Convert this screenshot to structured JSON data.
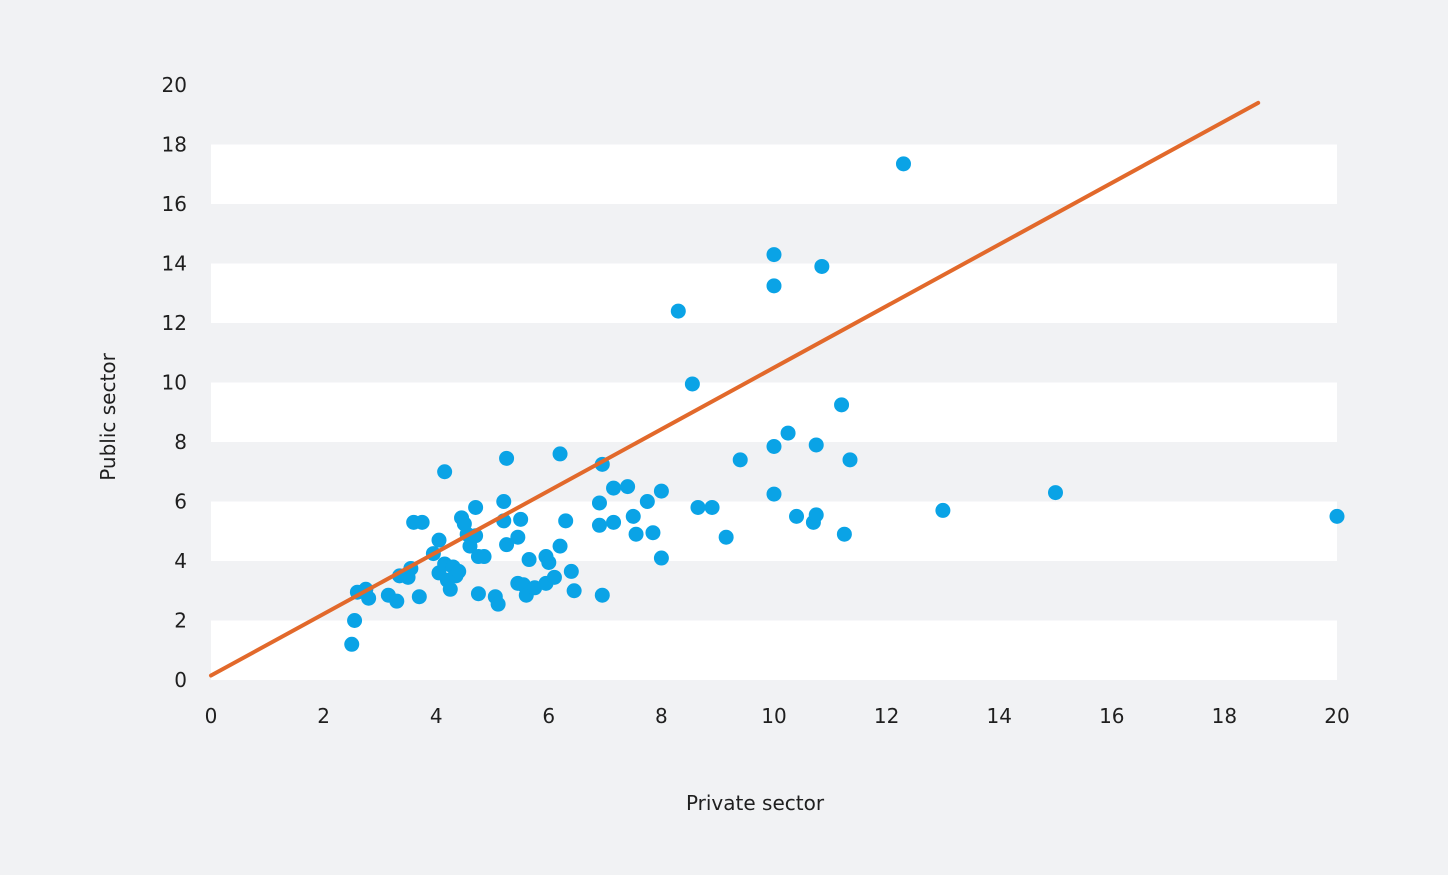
{
  "chart_data": {
    "type": "scatter",
    "title": "",
    "xlabel": "Private sector",
    "ylabel": "Public sector",
    "xlim": [
      0,
      20
    ],
    "ylim": [
      0,
      20
    ],
    "xticks": [
      0,
      2,
      4,
      6,
      8,
      10,
      12,
      14,
      16,
      18,
      20
    ],
    "yticks": [
      0,
      2,
      4,
      6,
      8,
      10,
      12,
      14,
      16,
      18,
      20
    ],
    "grid": "alternating horizontal bands",
    "legend": "none",
    "colors": {
      "background": "#f1f2f4",
      "band": "#ffffff",
      "points": "#0aa3e6",
      "line": "#e2692b",
      "text": "#1f1f1f"
    },
    "trend_line": {
      "x": [
        0,
        18.6
      ],
      "y": [
        0.15,
        19.4
      ]
    },
    "series": [
      {
        "points": [
          [
            2.5,
            1.2
          ],
          [
            2.55,
            2.0
          ],
          [
            2.6,
            2.95
          ],
          [
            2.75,
            3.05
          ],
          [
            2.8,
            2.75
          ],
          [
            3.15,
            2.85
          ],
          [
            3.3,
            2.65
          ],
          [
            3.35,
            3.5
          ],
          [
            3.5,
            3.45
          ],
          [
            3.55,
            3.75
          ],
          [
            3.6,
            5.3
          ],
          [
            3.75,
            5.3
          ],
          [
            3.7,
            2.8
          ],
          [
            3.95,
            4.25
          ],
          [
            4.05,
            4.7
          ],
          [
            4.05,
            3.6
          ],
          [
            4.15,
            3.9
          ],
          [
            4.2,
            3.35
          ],
          [
            4.25,
            3.05
          ],
          [
            4.3,
            3.8
          ],
          [
            4.35,
            3.5
          ],
          [
            4.4,
            3.65
          ],
          [
            4.15,
            7.0
          ],
          [
            4.45,
            5.45
          ],
          [
            4.5,
            5.25
          ],
          [
            4.55,
            4.9
          ],
          [
            4.6,
            4.5
          ],
          [
            4.7,
            4.85
          ],
          [
            4.7,
            5.8
          ],
          [
            4.75,
            4.15
          ],
          [
            4.75,
            2.9
          ],
          [
            4.85,
            4.15
          ],
          [
            5.05,
            2.8
          ],
          [
            5.1,
            2.55
          ],
          [
            5.2,
            5.35
          ],
          [
            5.2,
            6.0
          ],
          [
            5.25,
            4.55
          ],
          [
            5.25,
            7.45
          ],
          [
            5.45,
            4.8
          ],
          [
            5.45,
            3.25
          ],
          [
            5.5,
            5.4
          ],
          [
            5.55,
            3.2
          ],
          [
            5.6,
            2.85
          ],
          [
            5.65,
            4.05
          ],
          [
            5.75,
            3.1
          ],
          [
            5.95,
            3.25
          ],
          [
            5.95,
            4.15
          ],
          [
            6.0,
            3.95
          ],
          [
            6.1,
            3.45
          ],
          [
            6.2,
            4.5
          ],
          [
            6.2,
            7.6
          ],
          [
            6.3,
            5.35
          ],
          [
            6.4,
            3.65
          ],
          [
            6.45,
            3.0
          ],
          [
            6.9,
            5.2
          ],
          [
            6.9,
            5.95
          ],
          [
            6.95,
            7.25
          ],
          [
            6.95,
            2.85
          ],
          [
            7.15,
            5.3
          ],
          [
            7.15,
            6.45
          ],
          [
            7.4,
            6.5
          ],
          [
            7.5,
            5.5
          ],
          [
            7.55,
            4.9
          ],
          [
            7.75,
            6.0
          ],
          [
            7.85,
            4.95
          ],
          [
            8.0,
            6.35
          ],
          [
            8.0,
            4.1
          ],
          [
            8.3,
            12.4
          ],
          [
            8.55,
            9.95
          ],
          [
            8.65,
            5.8
          ],
          [
            8.9,
            5.8
          ],
          [
            9.15,
            4.8
          ],
          [
            9.4,
            7.4
          ],
          [
            10.0,
            14.3
          ],
          [
            10.0,
            13.25
          ],
          [
            10.0,
            7.85
          ],
          [
            10.0,
            6.25
          ],
          [
            10.25,
            8.3
          ],
          [
            10.4,
            5.5
          ],
          [
            10.7,
            5.3
          ],
          [
            10.75,
            5.55
          ],
          [
            10.75,
            7.9
          ],
          [
            10.85,
            13.9
          ],
          [
            11.2,
            9.25
          ],
          [
            11.25,
            4.9
          ],
          [
            11.35,
            7.4
          ],
          [
            12.3,
            17.35
          ],
          [
            13.0,
            5.7
          ],
          [
            15.0,
            6.3
          ],
          [
            20.0,
            5.5
          ]
        ]
      }
    ]
  }
}
